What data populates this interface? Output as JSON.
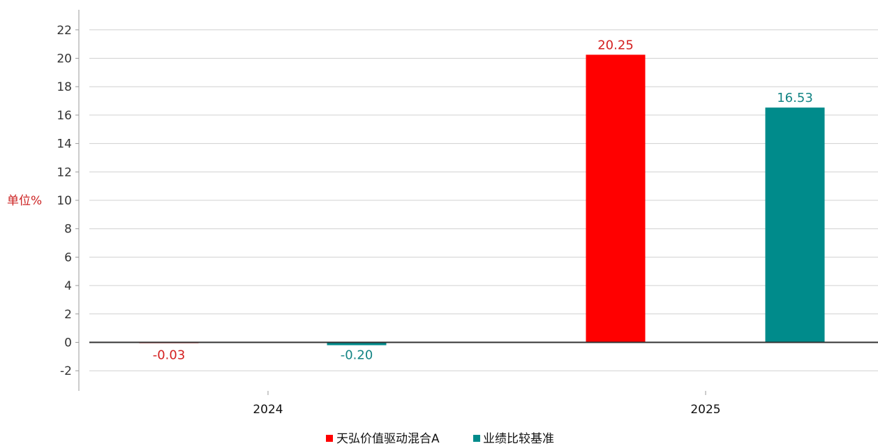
{
  "chart_data": {
    "type": "bar",
    "title": "",
    "xlabel": "",
    "ylabel": "单位%",
    "categories": [
      "2024",
      "2025"
    ],
    "series": [
      {
        "name": "天弘价值驱动混合A",
        "color": "#ff0000",
        "values": [
          -0.03,
          20.25
        ],
        "labels": [
          "-0.03",
          "20.25"
        ],
        "label_color": "#d42020"
      },
      {
        "name": "业绩比较基准",
        "color": "#008b8b",
        "values": [
          -0.2,
          16.53
        ],
        "labels": [
          "-0.20",
          "16.53"
        ],
        "label_color": "#138484"
      }
    ],
    "ylim": [
      -3.2,
      23.2
    ],
    "yticks": [
      -2,
      0,
      2,
      4,
      6,
      8,
      10,
      12,
      14,
      16,
      18,
      20,
      22
    ],
    "grid": true,
    "legend_position": "bottom-center"
  }
}
